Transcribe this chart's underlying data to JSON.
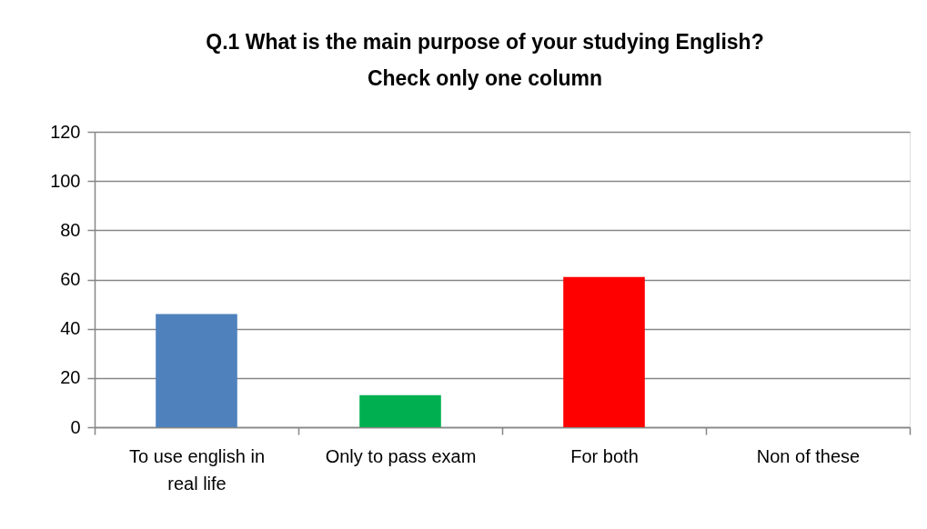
{
  "chart_data": {
    "type": "bar",
    "title": "Q.1  What is the main purpose of your studying English?\nCheck only one column",
    "categories": [
      "To use english in real life",
      "Only to pass exam",
      "For both",
      "Non of these"
    ],
    "values": [
      46,
      13,
      61,
      0
    ],
    "colors": [
      "#4f81bd",
      "#00b050",
      "#ff0000",
      "#4f81bd"
    ],
    "ylim": [
      0,
      120
    ],
    "yticks": [
      0,
      20,
      40,
      60,
      80,
      100,
      120
    ],
    "grid": "y"
  }
}
